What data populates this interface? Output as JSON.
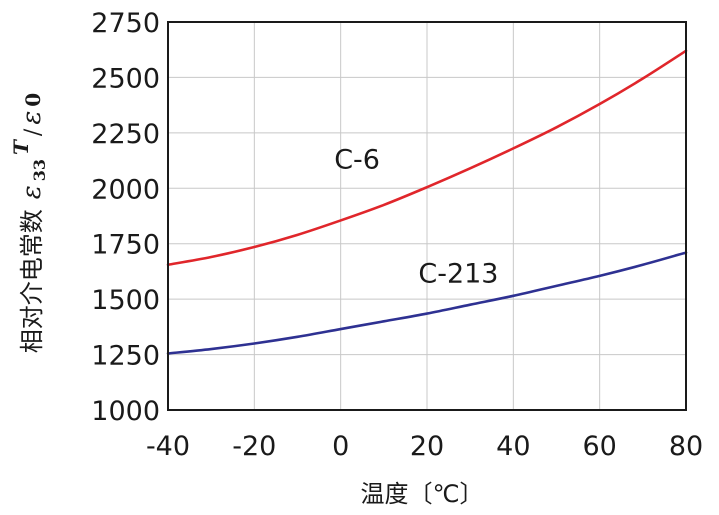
{
  "chart_data": {
    "type": "line",
    "xlabel": "温度〔℃〕",
    "ylabel": {
      "text": "相对介电常数",
      "epsilon": "ε",
      "subscript": "33",
      "superscript": "T",
      "slash": "/",
      "epsilon0": "ε",
      "zero": "0"
    },
    "xlim": [
      -40,
      80
    ],
    "ylim": [
      1000,
      2750
    ],
    "xticks": [
      -40,
      -20,
      0,
      20,
      40,
      60,
      80
    ],
    "yticks": [
      1000,
      1250,
      1500,
      1750,
      2000,
      2250,
      2500,
      2750
    ],
    "grid": true,
    "series": [
      {
        "name": "C-6",
        "color": "#e0262b",
        "x": [
          -40,
          -30,
          -20,
          -10,
          0,
          10,
          20,
          30,
          40,
          50,
          60,
          70,
          80
        ],
        "y": [
          1655,
          1690,
          1735,
          1790,
          1855,
          1925,
          2005,
          2090,
          2180,
          2275,
          2380,
          2495,
          2620
        ]
      },
      {
        "name": "C-213",
        "color": "#2e3192",
        "x": [
          -40,
          -30,
          -20,
          -10,
          0,
          10,
          20,
          30,
          40,
          50,
          60,
          70,
          80
        ],
        "y": [
          1255,
          1275,
          1300,
          1330,
          1365,
          1400,
          1435,
          1475,
          1515,
          1560,
          1605,
          1655,
          1710
        ]
      }
    ]
  }
}
